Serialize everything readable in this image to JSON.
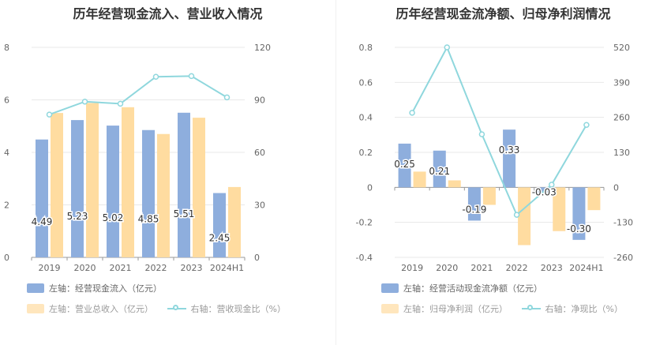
{
  "colors": {
    "bar_blue": "#8eaedd",
    "bar_orange": "#ffdca0",
    "line_teal": "#8fd7dd",
    "axis_text": "#666666",
    "grid": "#e8e8e8"
  },
  "left_chart": {
    "title": "历年经营现金流入、营业收入情况",
    "legend": {
      "bar1": "左轴：经营现金流入（亿元）",
      "bar2": "左轴：营业总收入（亿元）",
      "line": "右轴：营收现金比（%）"
    }
  },
  "right_chart": {
    "title": "历年经营现金流净额、归母净利润情况",
    "legend": {
      "bar1": "左轴：经营活动现金流净额（亿元）",
      "bar2": "左轴：归母净利润（亿元）",
      "line": "右轴：净现比（%）"
    }
  },
  "chart_data": [
    {
      "type": "bar",
      "title": "历年经营现金流入、营业收入情况",
      "categories": [
        "2019",
        "2020",
        "2021",
        "2022",
        "2023",
        "2024H1"
      ],
      "ylim_left": [
        0,
        8
      ],
      "left_ticks": [
        "0",
        "2",
        "4",
        "6",
        "8"
      ],
      "ylim_right": [
        0,
        120
      ],
      "right_ticks": [
        "0",
        "30",
        "60",
        "90",
        "120"
      ],
      "series": [
        {
          "name": "左轴：经营现金流入（亿元）",
          "kind": "bar",
          "axis": "left",
          "values": [
            4.49,
            5.23,
            5.02,
            4.85,
            5.51,
            2.45
          ],
          "labels": [
            "4.49",
            "5.23",
            "5.02",
            "4.85",
            "5.51",
            "2.45"
          ]
        },
        {
          "name": "左轴：营业总收入（亿元）",
          "kind": "bar",
          "axis": "left",
          "values": [
            5.5,
            5.88,
            5.72,
            4.7,
            5.32,
            2.68
          ]
        },
        {
          "name": "右轴：营收现金比（%）",
          "kind": "line",
          "axis": "right",
          "values": [
            81.6,
            89.0,
            87.8,
            103.2,
            103.6,
            91.4
          ]
        }
      ],
      "grid": true,
      "legend_position": "bottom"
    },
    {
      "type": "bar",
      "title": "历年经营现金流净额、归母净利润情况",
      "categories": [
        "2019",
        "2020",
        "2021",
        "2022",
        "2023",
        "2024H1"
      ],
      "ylim_left": [
        -0.4,
        0.8
      ],
      "left_ticks": [
        "-0.4",
        "-0.2",
        "0",
        "0.2",
        "0.4",
        "0.6",
        "0.8"
      ],
      "ylim_right": [
        -260,
        520
      ],
      "right_ticks": [
        "-260",
        "-130",
        "0",
        "130",
        "260",
        "390",
        "520"
      ],
      "series": [
        {
          "name": "左轴：经营活动现金流净额（亿元）",
          "kind": "bar",
          "axis": "left",
          "values": [
            0.25,
            0.21,
            -0.19,
            0.33,
            -0.03,
            -0.3
          ],
          "labels": [
            "0.25",
            "0.21",
            "-0.19",
            "0.33",
            "-0.03",
            "-0.30"
          ]
        },
        {
          "name": "左轴：归母净利润（亿元）",
          "kind": "bar",
          "axis": "left",
          "values": [
            0.09,
            0.04,
            -0.1,
            -0.33,
            -0.25,
            -0.13
          ]
        },
        {
          "name": "右轴：净现比（%）",
          "kind": "line",
          "axis": "right",
          "values": [
            277,
            520,
            197,
            -102,
            10,
            232
          ]
        }
      ],
      "grid": true,
      "legend_position": "bottom"
    }
  ]
}
